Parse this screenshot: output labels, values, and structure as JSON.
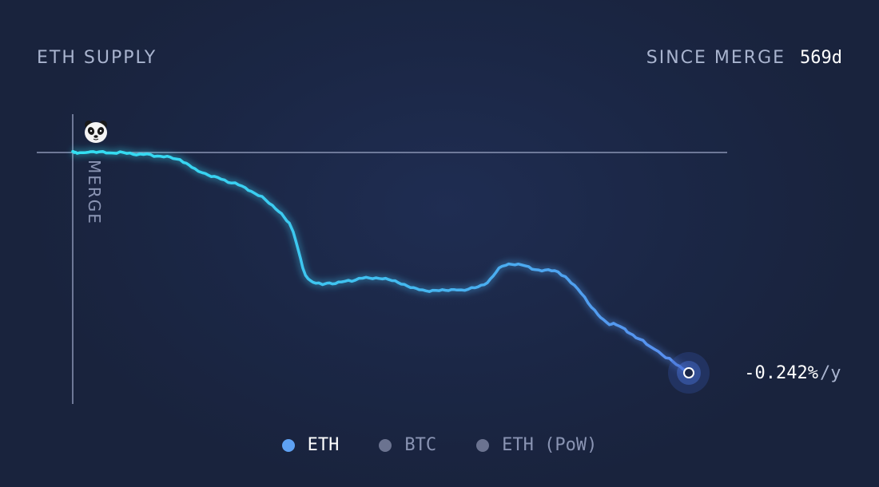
{
  "header": {
    "title": "ETH SUPPLY",
    "since_label": "SINCE MERGE",
    "since_value": "569d"
  },
  "chart_data": {
    "type": "line",
    "series": [
      {
        "name": "ETH",
        "values": [
          0.0,
          0.0,
          -0.001,
          -0.008,
          -0.026,
          -0.049,
          -0.09,
          -0.155,
          -0.167,
          -0.159,
          -0.174,
          -0.175,
          -0.168,
          -0.142,
          -0.149,
          -0.158,
          -0.212,
          -0.225,
          -0.28
        ]
      }
    ],
    "x_days": [
      0,
      10,
      50,
      95,
      120,
      165,
      200,
      215,
      235,
      280,
      320,
      355,
      380,
      400,
      430,
      455,
      490,
      510,
      569
    ],
    "xlim": [
      0,
      569
    ],
    "ylim": [
      -0.28,
      0.0
    ],
    "annotations": {
      "merge_label": "MERGE",
      "current_rate": "-0.242%",
      "rate_unit": "/y"
    },
    "grid": false
  },
  "legend": [
    {
      "label": "ETH",
      "color": "#5ea1f2",
      "active": true
    },
    {
      "label": "BTC",
      "color": "#6b7390",
      "active": false
    },
    {
      "label": "ETH (PoW)",
      "color": "#6b7390",
      "active": false
    }
  ],
  "colors": {
    "line_start": "#33e0f2",
    "line_end": "#5a8cf0",
    "axis": "#8a94b3",
    "text_muted": "#a9b4cf",
    "text_active": "#ffffff"
  },
  "icons": {
    "merge_marker": "panda-icon",
    "endpoint": "current-point-icon"
  }
}
